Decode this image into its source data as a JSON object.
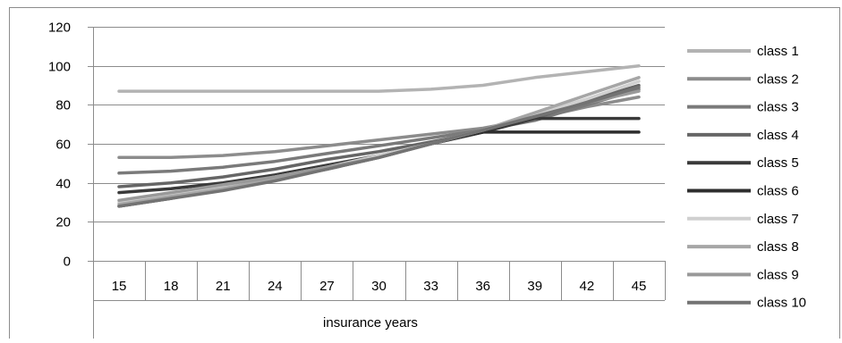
{
  "chart_data": {
    "type": "line",
    "title": "",
    "xlabel": "insurance years",
    "ylabel": "",
    "ylim": [
      0,
      120
    ],
    "yticks": [
      0,
      20,
      40,
      60,
      80,
      100,
      120
    ],
    "grid": true,
    "legend_position": "right",
    "categories": [
      "15",
      "18",
      "21",
      "24",
      "27",
      "30",
      "33",
      "36",
      "39",
      "42",
      "45"
    ],
    "series": [
      {
        "name": "class 1",
        "color": "#b3b3b3",
        "values": [
          87,
          87,
          87,
          87,
          87,
          87,
          88,
          90,
          94,
          97,
          100
        ]
      },
      {
        "name": "class 2",
        "color": "#8c8c8c",
        "values": [
          53,
          53,
          54,
          56,
          59,
          62,
          65,
          68,
          73,
          79,
          84
        ]
      },
      {
        "name": "class 3",
        "color": "#7a7a7a",
        "values": [
          45,
          46,
          48,
          51,
          55,
          59,
          63,
          67,
          72,
          80,
          88
        ]
      },
      {
        "name": "class 4",
        "color": "#666666",
        "values": [
          38,
          40,
          43,
          47,
          52,
          56,
          61,
          66,
          73,
          82,
          90
        ]
      },
      {
        "name": "class 5",
        "color": "#3a3a3a",
        "values": [
          35,
          37,
          40,
          44,
          49,
          54,
          60,
          66,
          73,
          73,
          73
        ]
      },
      {
        "name": "class 6",
        "color": "#2e2e2e",
        "values": [
          28,
          32,
          37,
          42,
          47,
          53,
          60,
          66,
          66,
          66,
          66
        ]
      },
      {
        "name": "class 7",
        "color": "#d0d0d0",
        "values": [
          30,
          34,
          38,
          43,
          48,
          54,
          60,
          67,
          75,
          83,
          92
        ]
      },
      {
        "name": "class 8",
        "color": "#a6a6a6",
        "values": [
          29,
          33,
          37,
          42,
          47,
          53,
          60,
          67,
          76,
          85,
          94
        ]
      },
      {
        "name": "class 9",
        "color": "#999999",
        "values": [
          31,
          35,
          39,
          43,
          48,
          53,
          60,
          67,
          74,
          81,
          87
        ]
      },
      {
        "name": "class 10",
        "color": "#737373",
        "values": [
          28,
          32,
          36,
          41,
          47,
          53,
          60,
          67,
          74,
          81,
          89
        ]
      }
    ]
  }
}
